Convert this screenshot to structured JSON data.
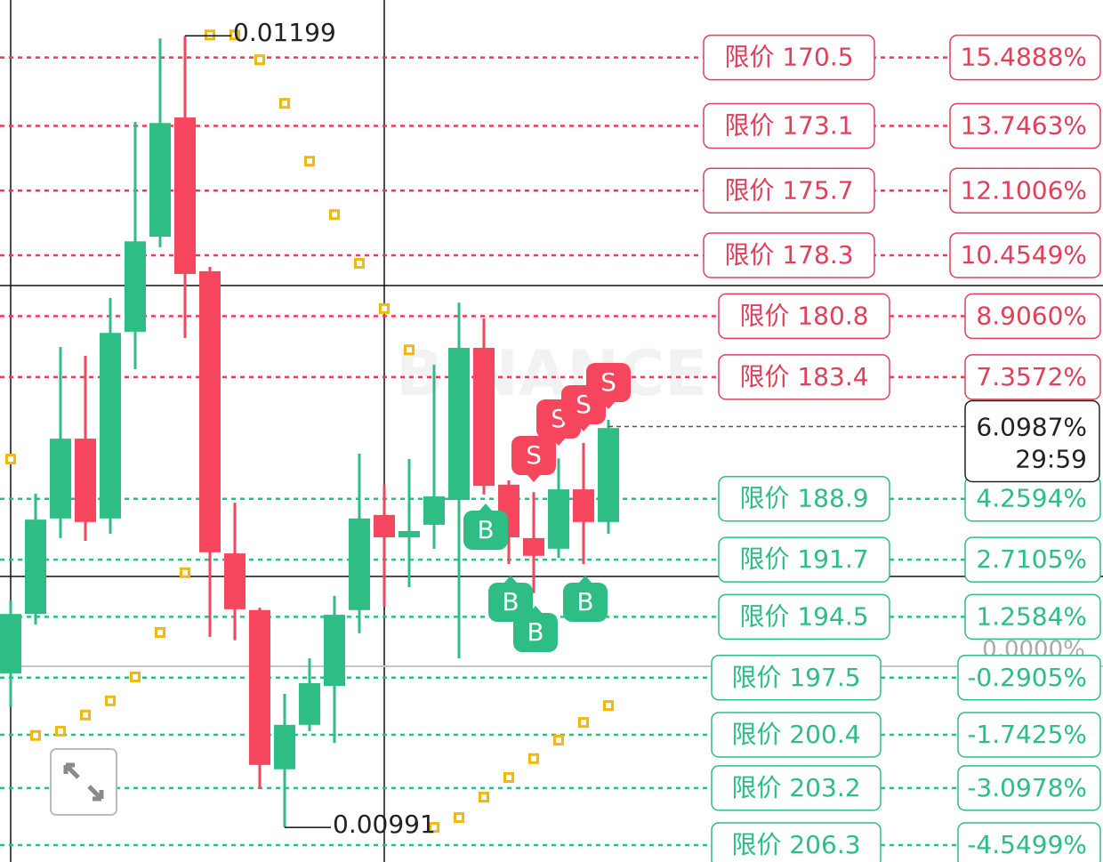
{
  "chart_data": {
    "type": "candlestick",
    "ylim": [
      -4.98,
      16.95
    ],
    "candles": {
      "open": [
        -0.18,
        1.33,
        3.76,
        5.79,
        3.76,
        8.51,
        10.93,
        13.96,
        10.05,
        2.87,
        1.43,
        -2.62,
        -1.49,
        -0.5,
        1.43,
        3.85,
        3.28,
        3.6,
        4.23,
        8.1,
        4.62,
        3.26,
        2.99,
        4.5,
        3.67
      ],
      "close": [
        1.33,
        3.73,
        5.79,
        3.67,
        8.48,
        10.81,
        13.82,
        9.98,
        2.9,
        1.45,
        -2.51,
        -1.49,
        -0.43,
        1.31,
        3.76,
        3.28,
        3.44,
        4.32,
        8.1,
        4.59,
        3.28,
        2.81,
        4.5,
        3.67,
        6.06
      ],
      "high": [
        1.67,
        4.39,
        8.12,
        7.9,
        9.37,
        13.85,
        15.97,
        16.04,
        10.16,
        4.16,
        1.49,
        -0.7,
        0.2,
        1.79,
        5.41,
        4.62,
        5.27,
        7.67,
        9.25,
        8.85,
        4.73,
        4.43,
        5.29,
        5.68,
        6.27
      ],
      "low": [
        -1.04,
        1.06,
        3.26,
        3.19,
        3.37,
        7.56,
        10.66,
        8.35,
        0.75,
        0.66,
        -3.12,
        -4.1,
        -1.65,
        -1.95,
        0.84,
        1.52,
        2.01,
        2.99,
        0.2,
        4.37,
        2.6,
        1.86,
        2.76,
        2.6,
        3.37
      ],
      "up_color": "#2ebd85",
      "down_color": "#f6465d"
    },
    "sar": {
      "color": "#f0b90b",
      "values": [
        5.27,
        -1.76,
        -1.65,
        -1.24,
        -0.88,
        -0.27,
        0.86,
        2.38,
        16.06,
        16.06,
        15.43,
        14.32,
        12.85,
        11.49,
        10.25,
        9.1,
        8.05,
        -4.1,
        -3.85,
        -3.33,
        -2.83,
        -2.35,
        -1.88,
        -1.43,
        -1.0
      ]
    },
    "high_label": "0.01199",
    "low_label": "0.00991",
    "watermark": "BINANCE",
    "sell_orders": {
      "color": "#e0405a",
      "labels": [
        "限价  170.5",
        "限价  173.1",
        "限价  175.7",
        "限价  178.3",
        "限价  180.8",
        "限价  183.4"
      ],
      "values": [
        15.4888,
        13.7463,
        12.1006,
        10.4549,
        8.906,
        7.3572
      ],
      "value_labels": [
        "15.4888%",
        "13.7463%",
        "12.1006%",
        "10.4549%",
        "8.9060%",
        "7.3572%"
      ]
    },
    "buy_orders": {
      "color": "#2ebd85",
      "labels": [
        "限价  188.9",
        "限价  191.7",
        "限价  194.5",
        "限价  197.5",
        "限价  200.4",
        "限价  203.2",
        "限价  206.3"
      ],
      "values": [
        4.2594,
        2.7105,
        1.2584,
        -0.2905,
        -1.7425,
        -3.0978,
        -4.5499
      ],
      "value_labels": [
        "4.2594%",
        "2.7105%",
        "1.2584%",
        "-0.2905%",
        "-1.7425%",
        "-3.0978%",
        "-4.5499%"
      ]
    },
    "baseline": {
      "value": 0,
      "label": "0.0000%"
    },
    "current": {
      "value": 6.0987,
      "label": "6.0987%",
      "countdown": "29:59"
    },
    "trade_markers": [
      "B",
      "B",
      "B",
      "B",
      "S",
      "S",
      "S",
      "S"
    ]
  }
}
